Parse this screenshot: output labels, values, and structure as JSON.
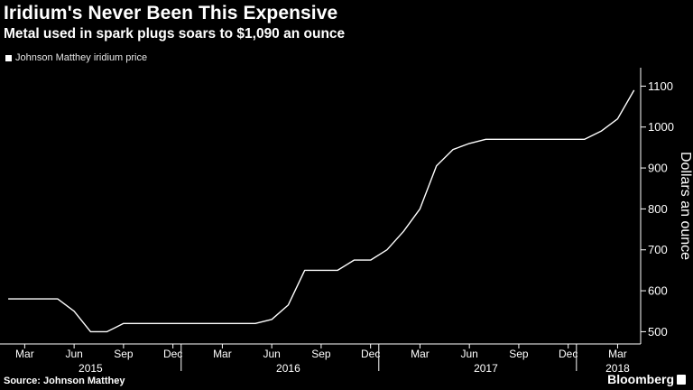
{
  "header": {
    "title": "Iridium's Never Been This Expensive",
    "subtitle": "Metal used in spark plugs soars to $1,090 an ounce"
  },
  "footer": {
    "source": "Source: Johnson Matthey",
    "brand": "Bloomberg"
  },
  "colors": {
    "background": "#000000",
    "line": "#ffffff",
    "axis": "#ffffff",
    "text": "#ffffff"
  },
  "chart_data": {
    "type": "line",
    "title": "Iridium's Never Been This Expensive",
    "subtitle": "Metal used in spark plugs soars to $1,090 an ounce",
    "xlabel": "",
    "ylabel": "Dollars an ounce",
    "y_axis_side": "right",
    "ylim": [
      470,
      1145
    ],
    "yticks": [
      500,
      600,
      700,
      800,
      900,
      1000,
      1100
    ],
    "grid": false,
    "legend": {
      "position": "top-left",
      "entries": [
        "Johnson Matthey iridium price"
      ]
    },
    "x_ticks": [
      {
        "date": "2015-03",
        "label": "Mar"
      },
      {
        "date": "2015-06",
        "label": "Jun"
      },
      {
        "date": "2015-09",
        "label": "Sep"
      },
      {
        "date": "2015-12",
        "label": "Dec"
      },
      {
        "date": "2016-03",
        "label": "Mar"
      },
      {
        "date": "2016-06",
        "label": "Jun"
      },
      {
        "date": "2016-09",
        "label": "Sep"
      },
      {
        "date": "2016-12",
        "label": "Dec"
      },
      {
        "date": "2017-03",
        "label": "Mar"
      },
      {
        "date": "2017-06",
        "label": "Jun"
      },
      {
        "date": "2017-09",
        "label": "Sep"
      },
      {
        "date": "2017-12",
        "label": "Dec"
      },
      {
        "date": "2018-03",
        "label": "Mar"
      }
    ],
    "year_labels": [
      {
        "label": "2015",
        "date": "2015-07"
      },
      {
        "label": "2016",
        "date": "2016-07"
      },
      {
        "label": "2017",
        "date": "2017-07"
      },
      {
        "label": "2018",
        "date": "2018-03"
      }
    ],
    "year_dividers": [
      "2016-01",
      "2017-01",
      "2018-01"
    ],
    "series": [
      {
        "name": "Johnson Matthey iridium price",
        "x": [
          "2015-02",
          "2015-03",
          "2015-04",
          "2015-05",
          "2015-06",
          "2015-07",
          "2015-08",
          "2015-09",
          "2015-10",
          "2015-11",
          "2015-12",
          "2016-01",
          "2016-02",
          "2016-03",
          "2016-04",
          "2016-05",
          "2016-06",
          "2016-07",
          "2016-08",
          "2016-09",
          "2016-10",
          "2016-11",
          "2016-12",
          "2017-01",
          "2017-02",
          "2017-03",
          "2017-04",
          "2017-05",
          "2017-06",
          "2017-07",
          "2017-08",
          "2017-09",
          "2017-10",
          "2017-11",
          "2017-12",
          "2018-01",
          "2018-02",
          "2018-03",
          "2018-04"
        ],
        "y": [
          580,
          580,
          580,
          580,
          550,
          500,
          500,
          520,
          520,
          520,
          520,
          520,
          520,
          520,
          520,
          520,
          530,
          565,
          650,
          650,
          650,
          675,
          675,
          700,
          745,
          800,
          905,
          945,
          960,
          970,
          970,
          970,
          970,
          970,
          970,
          970,
          990,
          1020,
          1090
        ]
      }
    ]
  }
}
